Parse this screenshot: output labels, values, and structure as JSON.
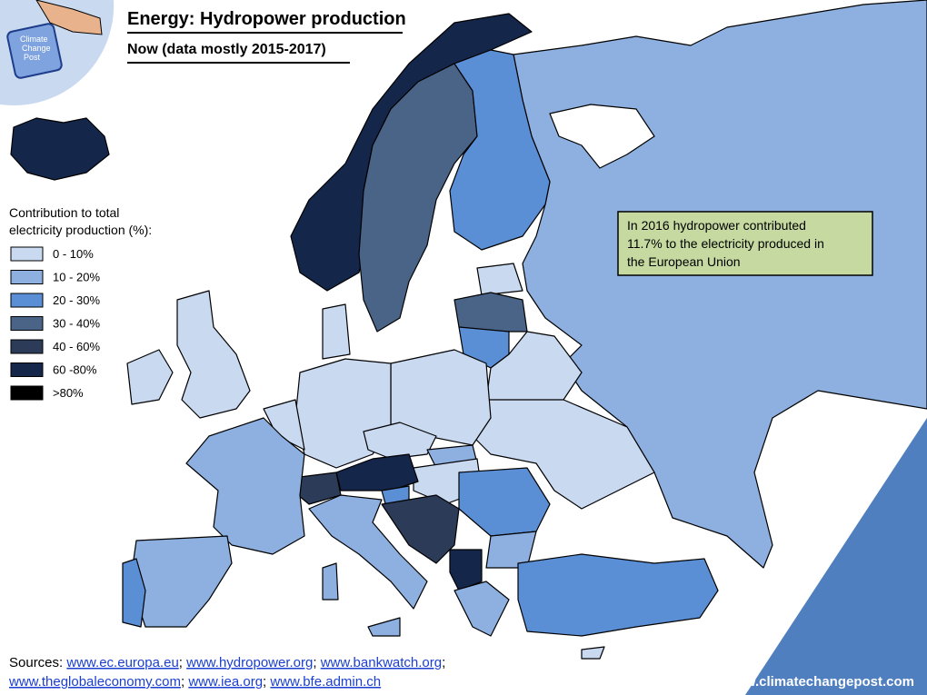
{
  "header": {
    "title": "Energy: Hydropower production",
    "subtitle": "Now (data mostly 2015-2017)",
    "logo_text": [
      "Climate",
      "Change",
      "Post"
    ]
  },
  "legend": {
    "title": [
      "Contribution to total",
      "electricity production (%):"
    ],
    "items": [
      {
        "label": "0 - 10%",
        "color": "#c9d9f0"
      },
      {
        "label": "10 - 20%",
        "color": "#8db0e0"
      },
      {
        "label": "20 - 30%",
        "color": "#5a8fd6"
      },
      {
        "label": "30 - 40%",
        "color": "#4a6488"
      },
      {
        "label": "40 - 60%",
        "color": "#2c3b58"
      },
      {
        "label": "60 -80%",
        "color": "#14264a"
      },
      {
        "label": ">80%",
        "color": "#000000"
      }
    ]
  },
  "note": {
    "lines": [
      "In 2016 hydropower contributed",
      "11.7% to the electricity produced in",
      "the European Union"
    ]
  },
  "sources": {
    "label": "Sources:",
    "separator": ";",
    "links": [
      "www.ec.europa.eu",
      "www.hydropower.org",
      "www.bankwatch.org",
      "www.theglobaleconomy.com",
      "www.iea.org",
      "www.bfe.admin.ch"
    ]
  },
  "footer": {
    "site": "www.climatechangepost.com"
  }
}
